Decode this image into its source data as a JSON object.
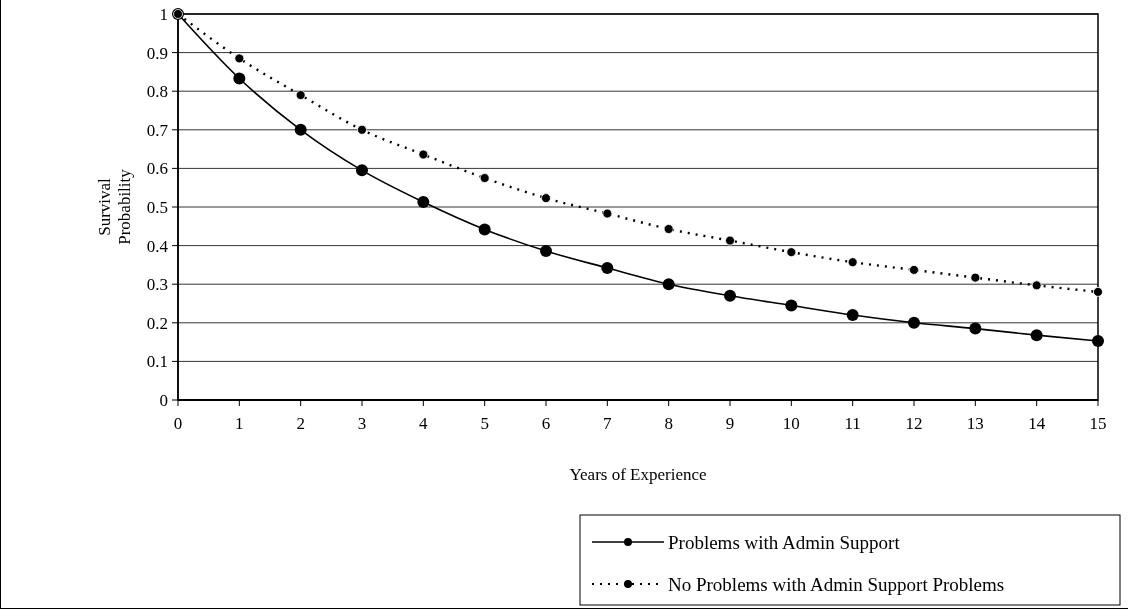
{
  "chart_data": {
    "type": "line",
    "xlabel": "Years of Experience",
    "ylabel": "Survival Probability",
    "x": [
      0,
      1,
      2,
      3,
      4,
      5,
      6,
      7,
      8,
      9,
      10,
      11,
      12,
      13,
      14,
      15
    ],
    "series": [
      {
        "name": "Problems with Admin Support",
        "color": "#000000",
        "line_style": "solid",
        "values": [
          1,
          0.833,
          0.7,
          0.595,
          0.513,
          0.442,
          0.386,
          0.342,
          0.3,
          0.27,
          0.245,
          0.22,
          0.2,
          0.185,
          0.168,
          0.153
        ]
      },
      {
        "name": "No Problems with Admin Support Problems",
        "color": "#000000",
        "line_style": "dotted",
        "values": [
          1,
          0.885,
          0.79,
          0.7,
          0.636,
          0.575,
          0.523,
          0.483,
          0.443,
          0.413,
          0.383,
          0.357,
          0.337,
          0.317,
          0.297,
          0.28
        ]
      }
    ],
    "xlim": [
      0,
      15
    ],
    "xticks": [
      0,
      1,
      2,
      3,
      4,
      5,
      6,
      7,
      8,
      9,
      10,
      11,
      12,
      13,
      14,
      15
    ],
    "ylim": [
      0,
      1
    ],
    "yticks": [
      0,
      0.1,
      0.2,
      0.3,
      0.4,
      0.5,
      0.6,
      0.7,
      0.8,
      0.9,
      1
    ],
    "grid": "y",
    "marker": "circle",
    "legend": "bottom right"
  }
}
